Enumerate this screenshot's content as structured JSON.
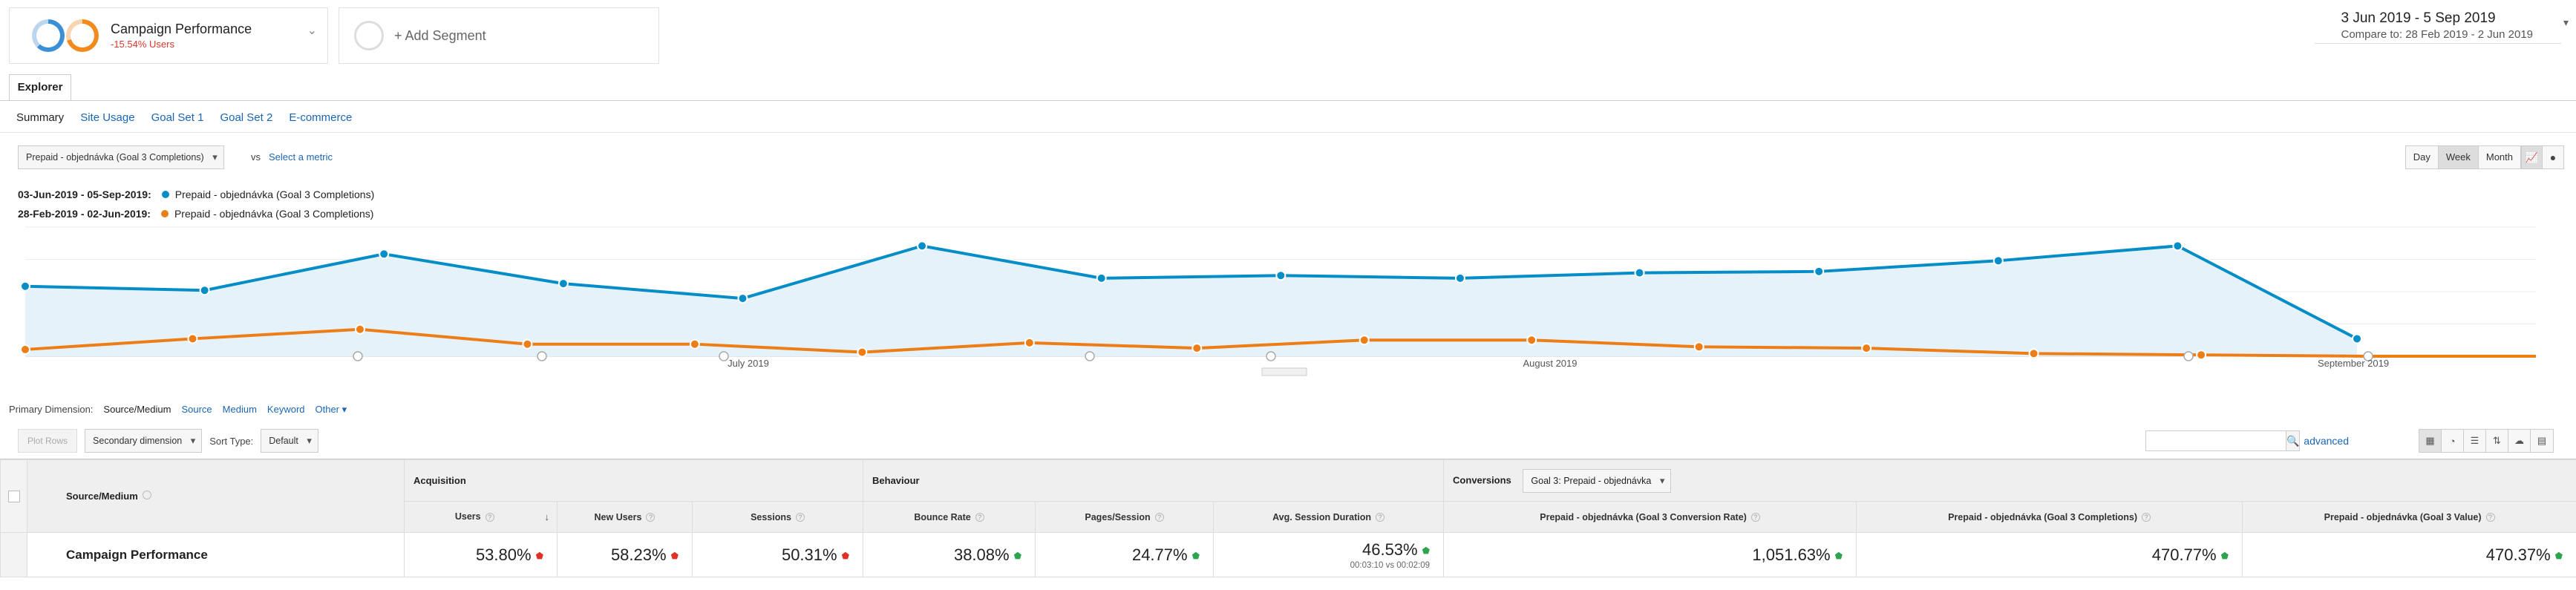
{
  "segments": {
    "segment1": {
      "title": "Campaign Performance",
      "subtitle": "-15.54% Users"
    },
    "segment2": {
      "label": "+ Add Segment"
    }
  },
  "date_range": {
    "main": "3 Jun 2019 - 5 Sep 2019",
    "compare_label": "Compare to:",
    "compare_value": "28 Feb 2019 - 2 Jun 2019"
  },
  "tabs": {
    "explorer": "Explorer",
    "subtabs": [
      "Summary",
      "Site Usage",
      "Goal Set 1",
      "Goal Set 2",
      "E-commerce"
    ]
  },
  "metric": {
    "selected": "Prepaid - objednávka (Goal 3 Completions)",
    "vs": "vs",
    "select_metric": "Select a metric"
  },
  "granularity": [
    "Day",
    "Week",
    "Month"
  ],
  "legend": [
    {
      "range": "03-Jun-2019 - 05-Sep-2019:",
      "label": "Prepaid - objednávka (Goal 3 Completions)",
      "color": "#058dc7"
    },
    {
      "range": "28-Feb-2019 - 02-Jun-2019:",
      "label": "Prepaid - objednávka (Goal 3 Completions)",
      "color": "#ed7e17"
    }
  ],
  "chart_data": {
    "type": "line",
    "x_labels": [
      "July 2019",
      "August 2019",
      "September 2019"
    ],
    "series": [
      {
        "name": "03-Jun-2019 - 05-Sep-2019",
        "color": "#058dc7",
        "values": [
          26,
          24.5,
          38,
          27,
          21.5,
          41,
          29,
          30,
          29,
          31,
          31.5,
          35.5,
          41,
          6.5
        ]
      },
      {
        "name": "28-Feb-2019 - 02-Jun-2019",
        "color": "#ed7e17",
        "values": [
          2.5,
          6.5,
          10,
          4.5,
          4.5,
          1.5,
          5,
          3,
          6,
          6,
          3.5,
          3,
          1,
          0.5,
          0,
          0
        ]
      }
    ]
  },
  "primary_dimension": {
    "label": "Primary Dimension:",
    "options": [
      "Source/Medium",
      "Source",
      "Medium",
      "Keyword",
      "Other ▾"
    ]
  },
  "table_tools": {
    "plot_rows": "Plot Rows",
    "secondary_dimension": "Secondary dimension",
    "sort_label": "Sort Type:",
    "sort_value": "Default",
    "search_placeholder": "",
    "advanced": "advanced"
  },
  "table": {
    "groups": {
      "acquisition": "Acquisition",
      "behaviour": "Behaviour",
      "conversions": "Conversions",
      "conversion_goal": "Goal 3: Prepaid - objednávka"
    },
    "dimension_header": "Source/Medium",
    "columns": [
      "Users",
      "New Users",
      "Sessions",
      "Bounce Rate",
      "Pages/Session",
      "Avg. Session Duration",
      "Prepaid - objednávka (Goal 3 Conversion Rate)",
      "Prepaid - objednávka (Goal 3 Completions)",
      "Prepaid - objednávka (Goal 3 Value)"
    ],
    "row": {
      "label": "Campaign Performance",
      "values": [
        "53.80%",
        "58.23%",
        "50.31%",
        "38.08%",
        "24.77%",
        "46.53%",
        "1,051.63%",
        "470.77%",
        "470.37%"
      ],
      "directions": [
        "down",
        "down",
        "down",
        "up",
        "up",
        "up",
        "up",
        "up",
        "up"
      ],
      "duration_sub": "00:03:10 vs 00:02:09"
    }
  }
}
